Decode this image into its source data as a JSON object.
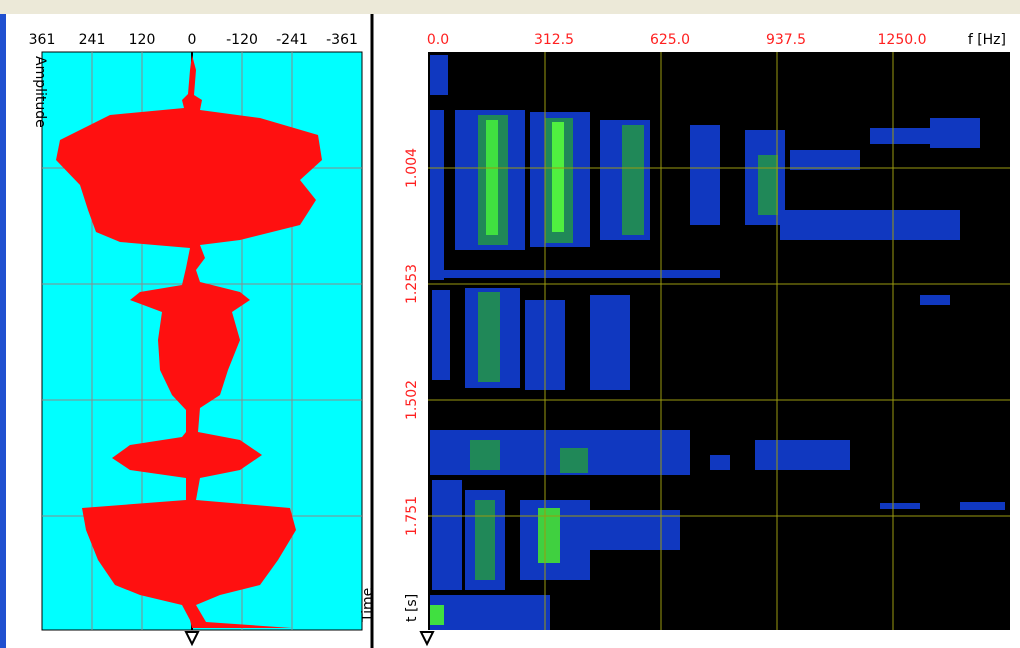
{
  "waveform_panel": {
    "x_ticks": [
      "361",
      "241",
      "120",
      "0",
      "-120",
      "-241",
      "-361"
    ],
    "y_axis_label": "Amplitude",
    "x_axis_label": "Time"
  },
  "spectrogram_panel": {
    "x_ticks": [
      "0.0",
      "312.5",
      "625.0",
      "937.5",
      "1250.0"
    ],
    "x_axis_label": "f [Hz]",
    "y_ticks": [
      "1.004",
      "1.253",
      "1.502",
      "1.751"
    ],
    "y_axis_label": "t [s]"
  }
}
